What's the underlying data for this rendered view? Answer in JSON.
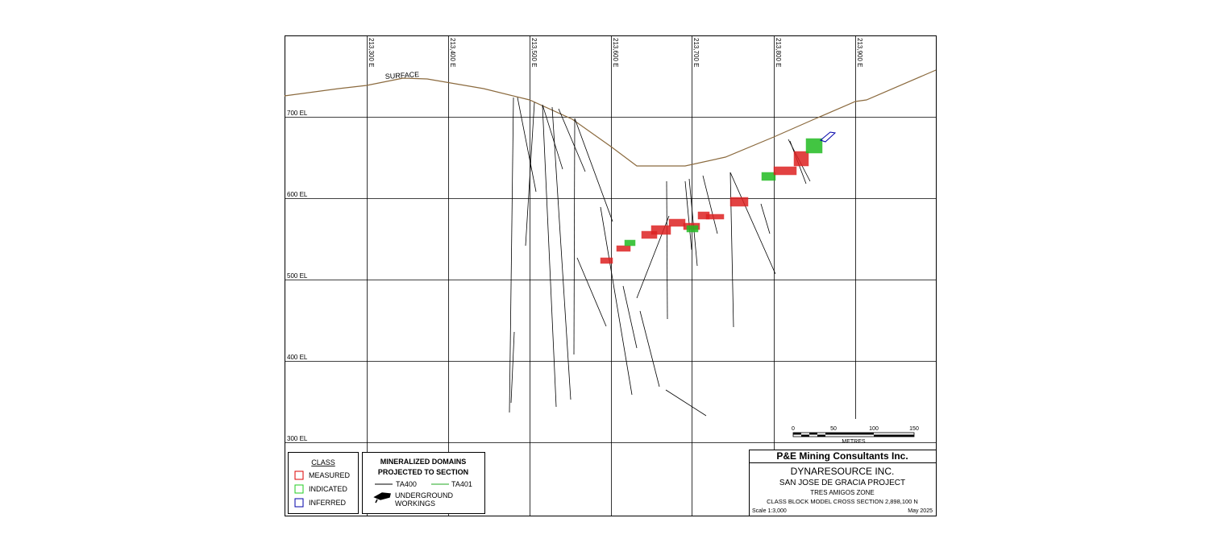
{
  "eastings": [
    "213,300 E",
    "213,400 E",
    "213,500 E",
    "213,600 E",
    "213,700 E",
    "213,800 E",
    "213,900 E"
  ],
  "elevations": [
    "700 EL",
    "600 EL",
    "500 EL",
    "400 EL",
    "300 EL"
  ],
  "surface_label": "SURFACE",
  "class_legend": {
    "title": "CLASS",
    "items": [
      "MEASURED",
      "INDICATED",
      "INFERRED"
    ]
  },
  "domains_legend": {
    "title": [
      "MINERALIZED DOMAINS",
      "PROJECTED TO SECTION"
    ],
    "items": [
      "TA400",
      "TA401"
    ],
    "workings": [
      "UNDERGROUND",
      "WORKINGS"
    ]
  },
  "scale_bar": {
    "ticks": [
      "0",
      "50",
      "100",
      "150"
    ],
    "unit": "METRES"
  },
  "title_block": {
    "company": "P&E Mining Consultants Inc.",
    "client": "DYNARESOURCE INC.",
    "project": "SAN JOSE DE GRACIA PROJECT",
    "zone": "TRES AMIGOS ZONE",
    "section": "CLASS BLOCK MODEL CROSS SECTION 2,898,100 N",
    "scale": "Scale 1:3,000",
    "date": "May 2025"
  }
}
